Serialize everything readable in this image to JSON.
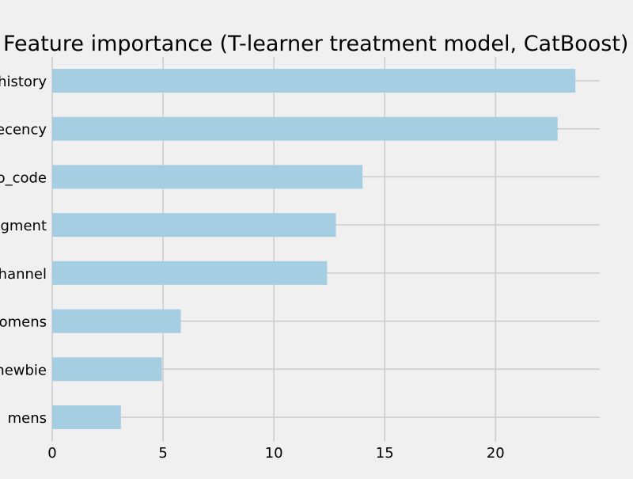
{
  "chart_data": {
    "type": "bar",
    "orientation": "horizontal",
    "title": "Feature importance (T-learner treatment model, CatBoost)",
    "categories": [
      "history",
      "recency",
      "zip_code",
      "segment",
      "channel",
      "womens",
      "newbie",
      "mens"
    ],
    "category_labels": [
      "history",
      "recency",
      "o_code",
      "gment",
      "hannel",
      "omens",
      "newbie",
      "mens"
    ],
    "values": [
      23.6,
      22.8,
      14.0,
      12.8,
      12.4,
      5.8,
      4.95,
      3.1
    ],
    "xlim": [
      0,
      24.7
    ],
    "xticks": [
      0,
      5,
      10,
      15,
      20
    ],
    "xlabel": "",
    "ylabel": "",
    "grid": true,
    "colors": {
      "background": "#f0f0f0",
      "bar": "#a6cee3",
      "grid": "#cbcbcb",
      "text": "#000000"
    }
  }
}
